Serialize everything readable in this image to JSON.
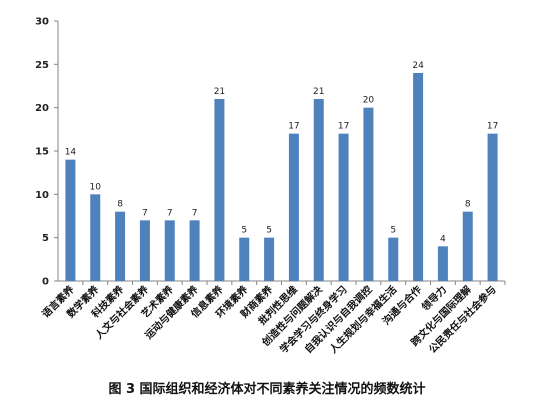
{
  "chart_data": {
    "type": "bar",
    "title": "",
    "xlabel": "",
    "ylabel": "",
    "ylim": [
      0,
      30
    ],
    "yticks": [
      0,
      5,
      10,
      15,
      20,
      25,
      30
    ],
    "grid": false,
    "legend": "none",
    "bar_color": "#4F81BD",
    "categories": [
      "语言素养",
      "数学素养",
      "科技素养",
      "人文与社会素养",
      "艺术素养",
      "运动与健康素养",
      "信息素养",
      "环境素养",
      "财商素养",
      "批判性思维",
      "创造性与问题解决",
      "学会学习与终身学习",
      "自我认识与自我调控",
      "人生规划与幸福生活",
      "沟通与合作",
      "领导力",
      "跨文化与国际理解",
      "公民责任与社会参与"
    ],
    "values": [
      14,
      10,
      8,
      7,
      7,
      7,
      21,
      5,
      5,
      17,
      21,
      17,
      20,
      5,
      24,
      4,
      8,
      17
    ]
  },
  "caption": "图 3 国际组织和经济体对不同素养关注情况的频数统计"
}
